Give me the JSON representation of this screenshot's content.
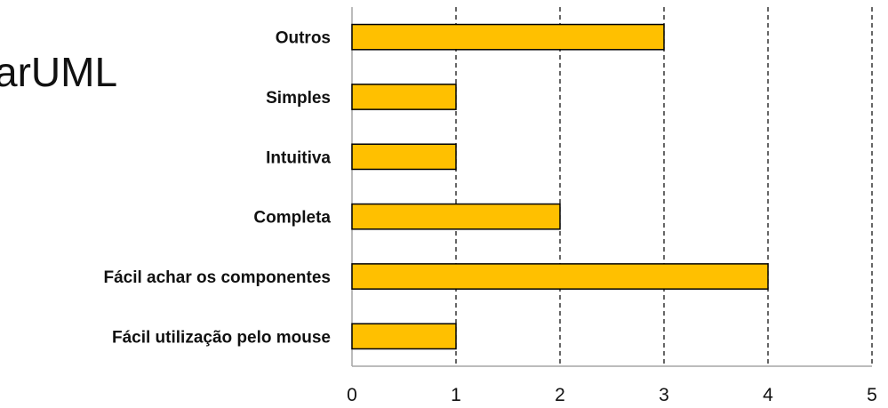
{
  "slide": {
    "title_fragment": "arUML"
  },
  "chart_data": {
    "type": "bar",
    "orientation": "horizontal",
    "categories": [
      "Outros",
      "Simples",
      "Intuitiva",
      "Completa",
      "Fácil achar os componentes",
      "Fácil utilização pelo mouse"
    ],
    "values": [
      3,
      1,
      1,
      2,
      4,
      1
    ],
    "xlim": [
      0,
      5
    ],
    "xticks": [
      "0",
      "1",
      "2",
      "3",
      "4",
      "5"
    ],
    "grid": "vertical-dashed",
    "colors": {
      "bar": "#FFC000",
      "bar_border": "#000000",
      "grid": "#000000",
      "axis": "#A6A6A6"
    }
  }
}
